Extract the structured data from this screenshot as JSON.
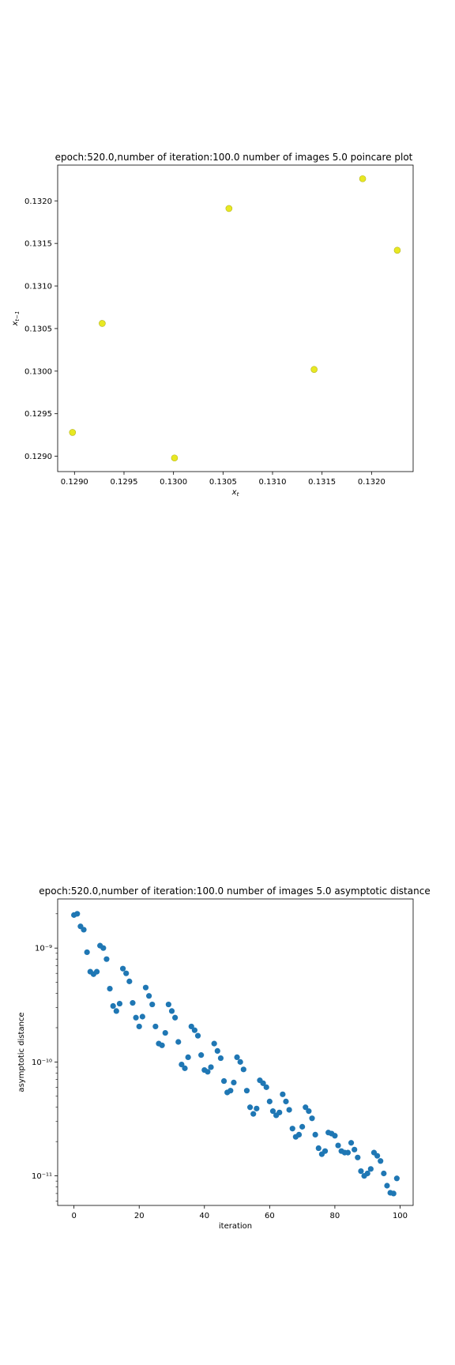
{
  "chart_data": [
    {
      "type": "scatter",
      "title": "epoch:520.0,number of iteration:100.0 number of images 5.0 poincare plot",
      "xlabel": "x_t",
      "ylabel": "x_{t-1}",
      "xlim": [
        0.12883,
        0.13242
      ],
      "ylim": [
        0.12882,
        0.13242
      ],
      "xticks": [
        "0.1290",
        "0.1295",
        "0.1300",
        "0.1305",
        "0.1310",
        "0.1315",
        "0.1320"
      ],
      "yticks": [
        "0.1290",
        "0.1295",
        "0.1300",
        "0.1305",
        "0.1310",
        "0.1315",
        "0.1320"
      ],
      "grid": false,
      "marker_color": "#e8e822",
      "points": [
        {
          "x": 0.12898,
          "y": 0.12928
        },
        {
          "x": 0.12928,
          "y": 0.13056
        },
        {
          "x": 0.13001,
          "y": 0.12898
        },
        {
          "x": 0.13056,
          "y": 0.13191
        },
        {
          "x": 0.13142,
          "y": 0.13002
        },
        {
          "x": 0.13191,
          "y": 0.13226
        },
        {
          "x": 0.13226,
          "y": 0.13142
        }
      ]
    },
    {
      "type": "scatter",
      "title": "epoch:520.0,number of iteration:100.0  number of images 5.0 asymptotic distance",
      "xlabel": "iteration",
      "ylabel": "asymptotic distance",
      "xlim": [
        -5,
        104
      ],
      "ylog": true,
      "ylim": [
        5.5e-12,
        2.7e-09
      ],
      "xticks": [
        0,
        20,
        40,
        60,
        80,
        100
      ],
      "yticks": [
        {
          "value": 1e-09,
          "label": "10⁻⁹"
        },
        {
          "value": 1e-10,
          "label": "10⁻¹⁰"
        },
        {
          "value": 1e-11,
          "label": "10⁻¹¹"
        }
      ],
      "grid": false,
      "marker_color": "#1f77b4",
      "x": [
        0,
        1,
        2,
        3,
        4,
        5,
        6,
        7,
        8,
        9,
        10,
        11,
        12,
        13,
        14,
        15,
        16,
        17,
        18,
        19,
        20,
        21,
        22,
        23,
        24,
        25,
        26,
        27,
        28,
        29,
        30,
        31,
        32,
        33,
        34,
        35,
        36,
        37,
        38,
        39,
        40,
        41,
        42,
        43,
        44,
        45,
        46,
        47,
        48,
        49,
        50,
        51,
        52,
        53,
        54,
        55,
        56,
        57,
        58,
        59,
        60,
        61,
        62,
        63,
        64,
        65,
        66,
        67,
        68,
        69,
        70,
        71,
        72,
        73,
        74,
        75,
        76,
        77,
        78,
        79,
        80,
        81,
        82,
        83,
        84,
        85,
        86,
        87,
        88,
        89,
        90,
        91,
        92,
        93,
        94,
        95,
        96,
        97,
        98,
        99
      ],
      "y": [
        1.95e-09,
        2e-09,
        1.55e-09,
        1.45e-09,
        9.2e-10,
        6.2e-10,
        5.9e-10,
        6.2e-10,
        1.05e-09,
        1e-09,
        8e-10,
        4.4e-10,
        3.1e-10,
        2.8e-10,
        3.25e-10,
        6.6e-10,
        6e-10,
        5.1e-10,
        3.3e-10,
        2.45e-10,
        2.05e-10,
        2.5e-10,
        4.5e-10,
        3.8e-10,
        3.2e-10,
        2.05e-10,
        1.45e-10,
        1.4e-10,
        1.8e-10,
        3.2e-10,
        2.8e-10,
        2.45e-10,
        1.5e-10,
        9.5e-11,
        8.8e-11,
        1.1e-10,
        2.05e-10,
        1.9e-10,
        1.7e-10,
        1.15e-10,
        8.5e-11,
        8.2e-11,
        9e-11,
        1.45e-10,
        1.25e-10,
        1.08e-10,
        6.8e-11,
        5.4e-11,
        5.6e-11,
        6.6e-11,
        1.1e-10,
        1e-10,
        8.6e-11,
        5.6e-11,
        4e-11,
        3.5e-11,
        3.9e-11,
        6.9e-11,
        6.5e-11,
        6e-11,
        4.5e-11,
        3.7e-11,
        3.4e-11,
        3.6e-11,
        5.2e-11,
        4.5e-11,
        3.8e-11,
        2.6e-11,
        2.2e-11,
        2.3e-11,
        2.7e-11,
        4e-11,
        3.7e-11,
        3.2e-11,
        2.3e-11,
        1.75e-11,
        1.55e-11,
        1.65e-11,
        2.4e-11,
        2.35e-11,
        2.25e-11,
        1.85e-11,
        1.65e-11,
        1.6e-11,
        1.6e-11,
        1.95e-11,
        1.7e-11,
        1.45e-11,
        1.1e-11,
        1e-11,
        1.05e-11,
        1.15e-11,
        1.6e-11,
        1.5e-11,
        1.35e-11,
        1.05e-11,
        8.2e-12,
        7.1e-12,
        7e-12,
        9.5e-12
      ]
    }
  ]
}
